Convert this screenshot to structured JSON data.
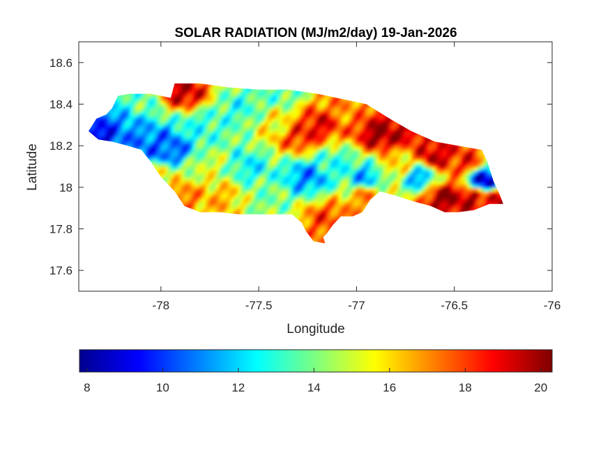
{
  "chart_data": {
    "type": "heatmap",
    "title": "SOLAR RADIATION (MJ/m2/day) 19-Jan-2026",
    "xlabel": "Longitude",
    "ylabel": "Latitude",
    "xlim": [
      -78.42,
      -76.0
    ],
    "ylim": [
      17.5,
      18.7
    ],
    "xticks": [
      -78,
      -77.5,
      -77,
      -76.5,
      -76
    ],
    "xtick_labels": [
      "-78",
      "-77.5",
      "-77",
      "-76.5",
      "-76"
    ],
    "yticks": [
      17.6,
      17.8,
      18.0,
      18.2,
      18.4,
      18.6
    ],
    "ytick_labels": [
      "17.6",
      "17.8",
      "18",
      "18.2",
      "18.4",
      "18.6"
    ],
    "colormap": "jet",
    "colorbar": {
      "location": "bottom",
      "range": [
        7.8,
        20.3
      ],
      "ticks": [
        8,
        10,
        12,
        14,
        16,
        18,
        20
      ],
      "tick_labels": [
        "8",
        "10",
        "12",
        "14",
        "16",
        "18",
        "20"
      ],
      "colors": [
        "#00008f",
        "#0000ff",
        "#00ffff",
        "#ffff00",
        "#ff0000",
        "#800000"
      ]
    },
    "grid": false,
    "outline": [
      [
        -78.37,
        18.27
      ],
      [
        -78.33,
        18.33
      ],
      [
        -78.28,
        18.35
      ],
      [
        -78.25,
        18.38
      ],
      [
        -78.22,
        18.44
      ],
      [
        -78.16,
        18.45
      ],
      [
        -78.05,
        18.45
      ],
      [
        -77.95,
        18.43
      ],
      [
        -77.93,
        18.5
      ],
      [
        -77.8,
        18.5
      ],
      [
        -77.65,
        18.48
      ],
      [
        -77.5,
        18.47
      ],
      [
        -77.35,
        18.47
      ],
      [
        -77.2,
        18.45
      ],
      [
        -77.05,
        18.42
      ],
      [
        -76.95,
        18.4
      ],
      [
        -76.83,
        18.33
      ],
      [
        -76.72,
        18.27
      ],
      [
        -76.6,
        18.22
      ],
      [
        -76.48,
        18.2
      ],
      [
        -76.36,
        18.18
      ],
      [
        -76.33,
        18.12
      ],
      [
        -76.3,
        18.03
      ],
      [
        -76.27,
        17.97
      ],
      [
        -76.25,
        17.92
      ],
      [
        -76.32,
        17.92
      ],
      [
        -76.4,
        17.89
      ],
      [
        -76.48,
        17.88
      ],
      [
        -76.55,
        17.88
      ],
      [
        -76.62,
        17.91
      ],
      [
        -76.7,
        17.93
      ],
      [
        -76.8,
        17.96
      ],
      [
        -76.88,
        17.98
      ],
      [
        -76.93,
        17.94
      ],
      [
        -76.97,
        17.88
      ],
      [
        -77.02,
        17.86
      ],
      [
        -77.08,
        17.86
      ],
      [
        -77.12,
        17.82
      ],
      [
        -77.15,
        17.78
      ],
      [
        -77.17,
        17.76
      ],
      [
        -77.16,
        17.73
      ],
      [
        -77.22,
        17.74
      ],
      [
        -77.26,
        17.79
      ],
      [
        -77.28,
        17.83
      ],
      [
        -77.33,
        17.87
      ],
      [
        -77.4,
        17.87
      ],
      [
        -77.5,
        17.87
      ],
      [
        -77.6,
        17.87
      ],
      [
        -77.7,
        17.88
      ],
      [
        -77.8,
        17.88
      ],
      [
        -77.88,
        17.91
      ],
      [
        -77.93,
        17.98
      ],
      [
        -78.0,
        18.05
      ],
      [
        -78.05,
        18.12
      ],
      [
        -78.1,
        18.18
      ],
      [
        -78.17,
        18.2
      ],
      [
        -78.25,
        18.22
      ],
      [
        -78.32,
        18.23
      ]
    ],
    "field_anchors": [
      {
        "lon": -78.3,
        "lat": 18.26,
        "value": 9.0
      },
      {
        "lon": -78.2,
        "lat": 18.3,
        "value": 11.0
      },
      {
        "lon": -78.12,
        "lat": 18.4,
        "value": 13.5
      },
      {
        "lon": -78.02,
        "lat": 18.2,
        "value": 10.5
      },
      {
        "lon": -77.95,
        "lat": 18.18,
        "value": 10.5
      },
      {
        "lon": -78.0,
        "lat": 18.05,
        "value": 15.5
      },
      {
        "lon": -77.9,
        "lat": 17.95,
        "value": 17.5
      },
      {
        "lon": -77.88,
        "lat": 18.45,
        "value": 19.5
      },
      {
        "lon": -77.8,
        "lat": 18.3,
        "value": 13.0
      },
      {
        "lon": -77.75,
        "lat": 18.1,
        "value": 15.0
      },
      {
        "lon": -77.7,
        "lat": 17.95,
        "value": 16.5
      },
      {
        "lon": -77.6,
        "lat": 18.38,
        "value": 13.0
      },
      {
        "lon": -77.55,
        "lat": 18.1,
        "value": 12.5
      },
      {
        "lon": -77.45,
        "lat": 17.95,
        "value": 14.0
      },
      {
        "lon": -77.4,
        "lat": 18.3,
        "value": 15.5
      },
      {
        "lon": -77.38,
        "lat": 18.45,
        "value": 13.5
      },
      {
        "lon": -77.3,
        "lat": 18.25,
        "value": 18.5
      },
      {
        "lon": -77.25,
        "lat": 18.05,
        "value": 11.0
      },
      {
        "lon": -77.2,
        "lat": 18.3,
        "value": 19.0
      },
      {
        "lon": -77.15,
        "lat": 17.85,
        "value": 18.0
      },
      {
        "lon": -77.1,
        "lat": 18.12,
        "value": 13.0
      },
      {
        "lon": -77.05,
        "lat": 18.38,
        "value": 17.0
      },
      {
        "lon": -76.95,
        "lat": 18.05,
        "value": 11.5
      },
      {
        "lon": -76.95,
        "lat": 17.95,
        "value": 17.0
      },
      {
        "lon": -76.88,
        "lat": 18.25,
        "value": 20.0
      },
      {
        "lon": -76.8,
        "lat": 18.1,
        "value": 16.0
      },
      {
        "lon": -76.75,
        "lat": 18.3,
        "value": 19.5
      },
      {
        "lon": -76.68,
        "lat": 18.05,
        "value": 11.5
      },
      {
        "lon": -76.6,
        "lat": 18.15,
        "value": 19.5
      },
      {
        "lon": -76.55,
        "lat": 17.95,
        "value": 20.0
      },
      {
        "lon": -76.45,
        "lat": 18.12,
        "value": 18.5
      },
      {
        "lon": -76.42,
        "lat": 17.95,
        "value": 19.5
      },
      {
        "lon": -76.35,
        "lat": 18.03,
        "value": 8.5
      },
      {
        "lon": -76.3,
        "lat": 17.94,
        "value": 19.0
      }
    ]
  }
}
